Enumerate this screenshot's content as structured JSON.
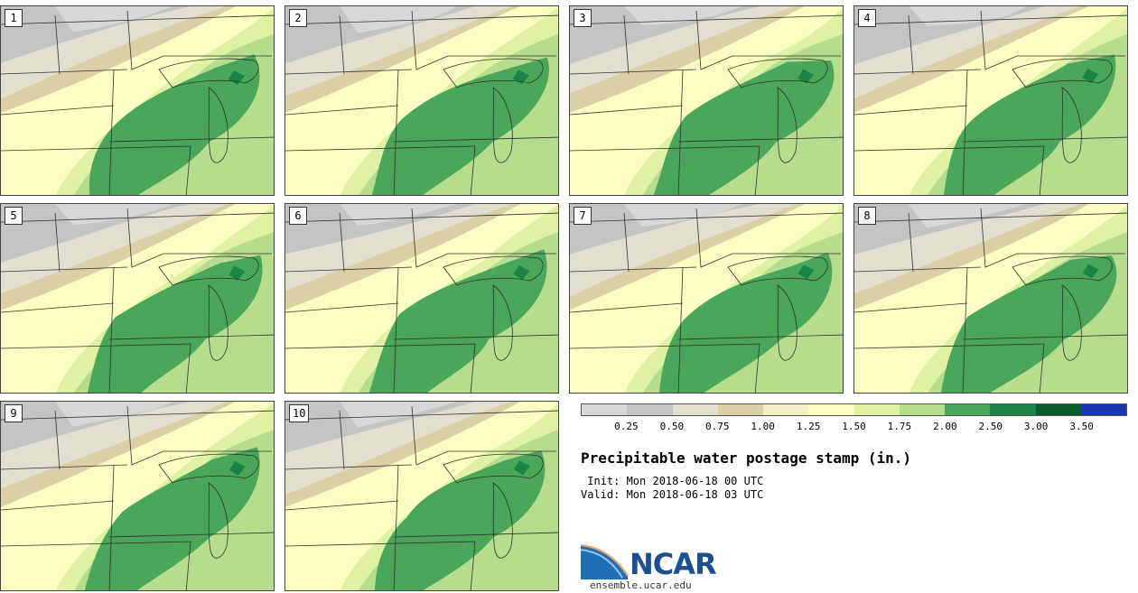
{
  "members": [
    "1",
    "2",
    "3",
    "4",
    "5",
    "6",
    "7",
    "8",
    "9",
    "10"
  ],
  "colorbar": {
    "colors": [
      "#d7d7d7",
      "#c4c4c4",
      "#e1e0d0",
      "#dccfa5",
      "#efeec4",
      "#fcfdc3",
      "#dff2a3",
      "#b6dc8e",
      "#4aa75a",
      "#1a8446",
      "#0c5a30",
      "#1b36b5"
    ],
    "ticks": [
      "0.25",
      "0.50",
      "0.75",
      "1.00",
      "1.25",
      "1.50",
      "1.75",
      "2.00",
      "2.50",
      "3.00",
      "3.50"
    ]
  },
  "title": "Precipitable water postage stamp (in.)",
  "init": " Init: Mon 2018-06-18 00 UTC",
  "valid": "Valid: Mon 2018-06-18 03 UTC",
  "logo_text": "NCAR",
  "website": "ensemble.ucar.edu"
}
